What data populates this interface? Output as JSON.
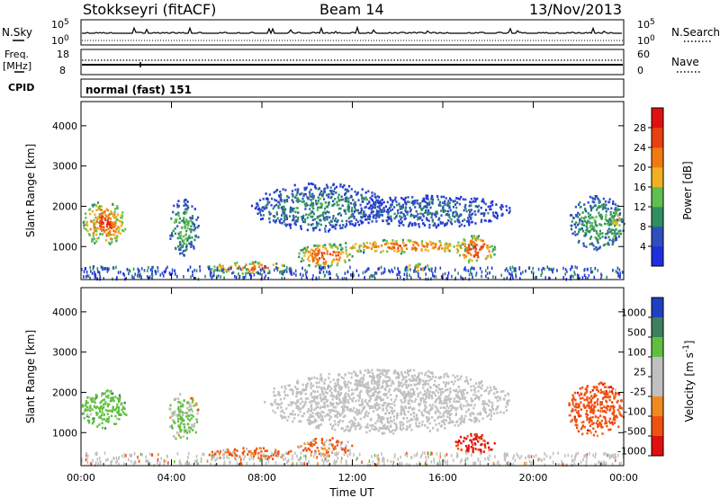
{
  "header": {
    "station": "Stokkseyri (fitACF)",
    "beam": "Beam 14",
    "date": "13/Nov/2013"
  },
  "params": {
    "nsky_label": "N.Sky",
    "nsearch_label": "N.Search",
    "freq_label_top": "Freq.",
    "freq_label_unit": "[MHz]",
    "nave_label": "Nave",
    "cpid_label": "CPID",
    "cpid_text": "normal (fast) 151",
    "noise_ticks_left": [
      "10^5",
      "10^0"
    ],
    "noise_ticks_right": [
      "10^5",
      "10^0"
    ],
    "freq_ticks": [
      "18",
      "8"
    ],
    "nave_ticks": [
      "60",
      "0"
    ]
  },
  "colors": {
    "power_scale": [
      "#1f2fe0",
      "#2f4fbf",
      "#2f8f5f",
      "#5fbf4f",
      "#f0b020",
      "#f07a10",
      "#e84010",
      "#e01010"
    ],
    "velocity_scale": [
      "#2040c0",
      "#3f7f5f",
      "#5fc040",
      "#c0c0c0",
      "#c0c0c0",
      "#f08a20",
      "#f05010",
      "#e01010"
    ],
    "ground_scatter": "#c0c0c0"
  },
  "chart_data": [
    {
      "type": "heatmap",
      "panel": "power",
      "ylabel": "Slant Range [km]",
      "ylim": [
        180,
        4600
      ],
      "yticks": [
        "1000",
        "2000",
        "3000",
        "4000"
      ],
      "xlim": [
        0,
        24
      ],
      "colorbar": {
        "label": "Power [dB]",
        "range": [
          0,
          32
        ],
        "ticks": [
          "4",
          "8",
          "12",
          "16",
          "20",
          "24",
          "28"
        ]
      },
      "echo_regions": [
        {
          "t": [
            0.0,
            2.0
          ],
          "r": [
            1050,
            2150
          ],
          "power": 26
        },
        {
          "t": [
            0.5,
            1.6
          ],
          "r": [
            1300,
            1900
          ],
          "power": 29
        },
        {
          "t": [
            3.8,
            5.2
          ],
          "r": [
            800,
            2200
          ],
          "power": 12
        },
        {
          "t": [
            5.5,
            9.5
          ],
          "r": [
            350,
            650
          ],
          "power": 24
        },
        {
          "t": [
            7.5,
            13.5
          ],
          "r": [
            1400,
            2600
          ],
          "power": 10
        },
        {
          "t": [
            9.5,
            12.0
          ],
          "r": [
            500,
            1100
          ],
          "power": 26
        },
        {
          "t": [
            11.0,
            17.5
          ],
          "r": [
            850,
            1200
          ],
          "power": 24
        },
        {
          "t": [
            14.0,
            15.5
          ],
          "r": [
            400,
            600
          ],
          "power": 22
        },
        {
          "t": [
            16.5,
            18.3
          ],
          "r": [
            600,
            1300
          ],
          "power": 27
        },
        {
          "t": [
            12.0,
            19.0
          ],
          "r": [
            1500,
            2300
          ],
          "power": 8
        },
        {
          "t": [
            21.5,
            24.0
          ],
          "r": [
            900,
            2300
          ],
          "power": 12
        },
        {
          "t": [
            23.3,
            24.0
          ],
          "r": [
            1200,
            2000
          ],
          "power": 18
        }
      ]
    },
    {
      "type": "heatmap",
      "panel": "velocity",
      "ylabel": "Slant Range [km]",
      "ylim": [
        180,
        4600
      ],
      "yticks": [
        "1000",
        "2000",
        "3000",
        "4000"
      ],
      "xlim": [
        0,
        24
      ],
      "xlabel": "Time UT",
      "xticks": [
        "00:00",
        "04:00",
        "08:00",
        "12:00",
        "16:00",
        "20:00",
        "00:00"
      ],
      "colorbar": {
        "label": "Velocity [m s^-1]",
        "ticks": [
          "1000",
          "500",
          "100",
          "25",
          "-25",
          "-100",
          "-500",
          "-1000"
        ]
      },
      "echo_regions": [
        {
          "t": [
            0.0,
            2.0
          ],
          "r": [
            1100,
            2100
          ],
          "velocity": 300
        },
        {
          "t": [
            3.8,
            5.2
          ],
          "r": [
            800,
            2000
          ],
          "velocity": 150
        },
        {
          "t": [
            5.5,
            9.5
          ],
          "r": [
            350,
            650
          ],
          "velocity": -200
        },
        {
          "t": [
            8.0,
            19.0
          ],
          "r": [
            1000,
            2600
          ],
          "velocity": 0,
          "ground_scatter": true
        },
        {
          "t": [
            9.5,
            12.0
          ],
          "r": [
            450,
            900
          ],
          "velocity": -150
        },
        {
          "t": [
            16.5,
            18.3
          ],
          "r": [
            500,
            1000
          ],
          "velocity": -600
        },
        {
          "t": [
            21.5,
            24.0
          ],
          "r": [
            900,
            2300
          ],
          "velocity": -300
        }
      ]
    }
  ]
}
